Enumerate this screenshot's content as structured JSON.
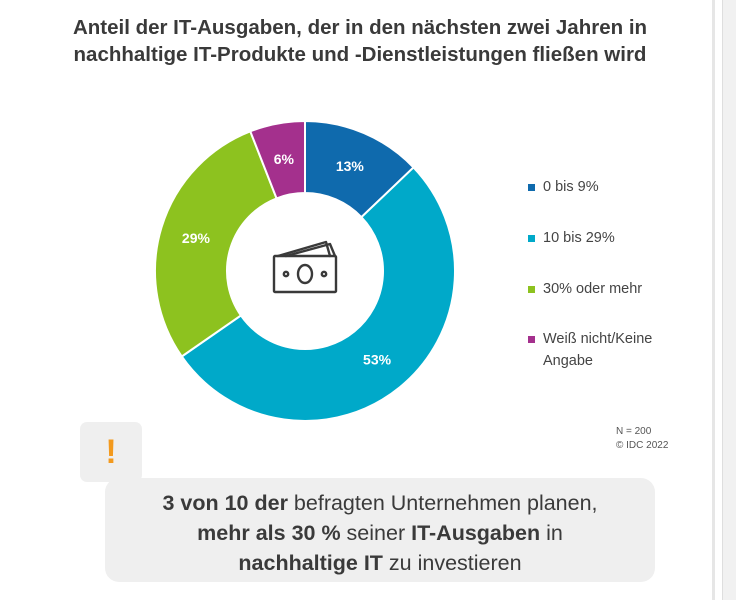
{
  "chart_data": {
    "type": "pie",
    "donut": true,
    "title_lines": [
      "Anteil der IT-Ausgaben, der in den nächsten zwei Jahren in",
      "nachhaltige IT-Produkte und -Dienstleistungen fließen wird"
    ],
    "slices": [
      {
        "label": "0 bis 9%",
        "value": 13,
        "value_label": "13%",
        "color": "#0f6aad"
      },
      {
        "label": "10 bis 29%",
        "value": 53,
        "value_label": "53%",
        "color": "#00a9c9"
      },
      {
        "label": "30% oder mehr",
        "value": 29,
        "value_label": "29%",
        "color": "#8dc21f"
      },
      {
        "label": "Weiß nicht/Keine Angabe",
        "value": 6,
        "value_label": "6%",
        "color": "#a4308d"
      }
    ],
    "start_angle_deg": 0,
    "direction": "clockwise",
    "legend_position": "right",
    "center_icon": "money-bills-icon"
  },
  "meta": {
    "sample": "N = 200",
    "source": "© IDC 2022"
  },
  "callout": {
    "icon": "exclamation-icon",
    "icon_glyph": "!",
    "icon_color": "#f39a1e",
    "line1": [
      {
        "text": "3 von 10 der",
        "bold": true
      },
      {
        "text": " befragten Unternehmen planen,",
        "bold": false
      }
    ],
    "line2": [
      {
        "text": "mehr als 30 %",
        "bold": true
      },
      {
        "text": " seiner ",
        "bold": false
      },
      {
        "text": "IT-Ausgaben",
        "bold": true
      },
      {
        "text": " in",
        "bold": false
      }
    ],
    "line3": [
      {
        "text": "nachhaltige IT",
        "bold": true
      },
      {
        "text": " zu investieren",
        "bold": false
      }
    ]
  }
}
